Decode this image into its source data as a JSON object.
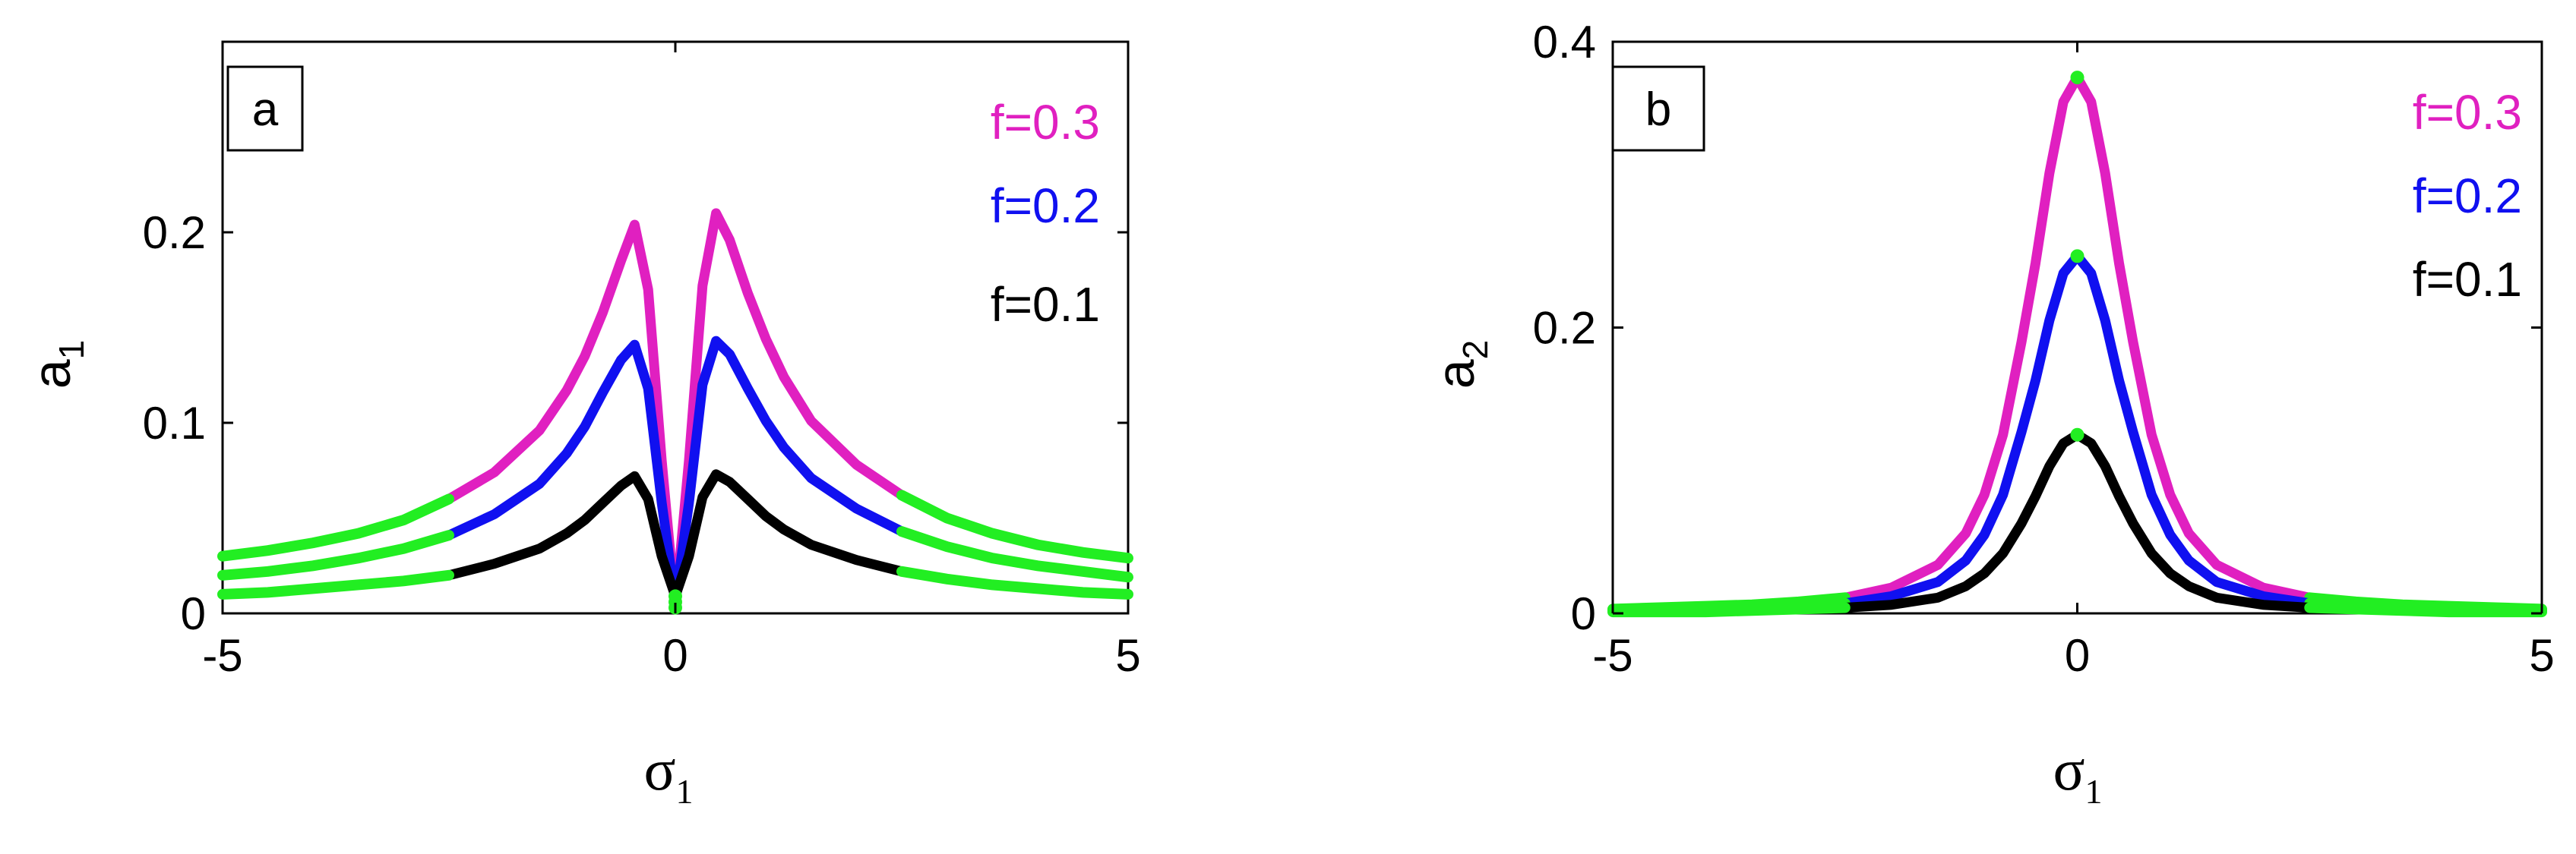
{
  "chart_data": [
    {
      "panel": "a",
      "type": "line",
      "xlabel": "σ",
      "xlabel_sub": "1",
      "ylabel": "a",
      "ylabel_sub": "1",
      "xlim": [
        -5,
        5
      ],
      "ylim": [
        0,
        0.3
      ],
      "xticks": [
        -5,
        0,
        5
      ],
      "yticks": [
        0,
        0.1,
        0.2
      ],
      "ytick_labels": [
        "0",
        "0.1",
        "0.2"
      ],
      "xtick_labels": [
        "-5",
        "0",
        "5"
      ],
      "grid": false,
      "legend_position": "top-right",
      "stable_color": "#22ee22",
      "stable_range_note_x": [
        -2.5,
        2.5
      ],
      "x": [
        -5,
        -4.5,
        -4,
        -3.5,
        -3,
        -2.5,
        -2,
        -1.5,
        -1.2,
        -1,
        -0.8,
        -0.6,
        -0.45,
        -0.3,
        -0.15,
        0,
        0.15,
        0.3,
        0.45,
        0.6,
        0.8,
        1,
        1.2,
        1.5,
        2,
        2.5,
        3,
        3.5,
        4,
        4.5,
        5
      ],
      "series": [
        {
          "name": "f=0.3",
          "color": "#e020c0",
          "values": [
            0.03,
            0.033,
            0.037,
            0.042,
            0.049,
            0.06,
            0.074,
            0.096,
            0.117,
            0.135,
            0.158,
            0.185,
            0.204,
            0.17,
            0.08,
            0.003,
            0.08,
            0.172,
            0.21,
            0.196,
            0.168,
            0.144,
            0.124,
            0.101,
            0.078,
            0.062,
            0.05,
            0.042,
            0.036,
            0.032,
            0.029
          ]
        },
        {
          "name": "f=0.2",
          "color": "#1010f0",
          "values": [
            0.02,
            0.022,
            0.025,
            0.029,
            0.034,
            0.041,
            0.052,
            0.068,
            0.084,
            0.098,
            0.116,
            0.133,
            0.141,
            0.118,
            0.058,
            0.006,
            0.058,
            0.12,
            0.143,
            0.136,
            0.118,
            0.101,
            0.087,
            0.071,
            0.055,
            0.043,
            0.035,
            0.029,
            0.025,
            0.022,
            0.019
          ]
        },
        {
          "name": "f=0.1",
          "color": "#000000",
          "values": [
            0.01,
            0.011,
            0.013,
            0.015,
            0.017,
            0.02,
            0.026,
            0.034,
            0.042,
            0.049,
            0.058,
            0.067,
            0.072,
            0.06,
            0.03,
            0.009,
            0.03,
            0.061,
            0.073,
            0.069,
            0.06,
            0.051,
            0.044,
            0.036,
            0.028,
            0.022,
            0.018,
            0.015,
            0.013,
            0.011,
            0.01
          ]
        }
      ]
    },
    {
      "panel": "b",
      "type": "line",
      "xlabel": "σ",
      "xlabel_sub": "1",
      "ylabel": "a",
      "ylabel_sub": "2",
      "xlim": [
        -5,
        5
      ],
      "ylim": [
        0,
        0.4
      ],
      "xticks": [
        -5,
        0,
        5
      ],
      "yticks": [
        0,
        0.2,
        0.4
      ],
      "ytick_labels": [
        "0",
        "0.2",
        "0.4"
      ],
      "xtick_labels": [
        "-5",
        "0",
        "5"
      ],
      "grid": false,
      "legend_position": "top-right",
      "stable_color": "#22ee22",
      "stable_range_note_x": [
        -2.5,
        2.5
      ],
      "x": [
        -5,
        -4.5,
        -4,
        -3.5,
        -3,
        -2.5,
        -2,
        -1.5,
        -1.2,
        -1,
        -0.8,
        -0.6,
        -0.45,
        -0.3,
        -0.15,
        0,
        0.15,
        0.3,
        0.45,
        0.6,
        0.8,
        1,
        1.2,
        1.5,
        2,
        2.5,
        3,
        3.5,
        4,
        4.5,
        5
      ],
      "series": [
        {
          "name": "f=0.3",
          "color": "#e020c0",
          "values": [
            0.003,
            0.004,
            0.005,
            0.006,
            0.008,
            0.011,
            0.018,
            0.034,
            0.056,
            0.083,
            0.125,
            0.19,
            0.245,
            0.308,
            0.358,
            0.375,
            0.358,
            0.308,
            0.245,
            0.19,
            0.125,
            0.083,
            0.056,
            0.034,
            0.018,
            0.011,
            0.008,
            0.006,
            0.005,
            0.004,
            0.003
          ]
        },
        {
          "name": "f=0.2",
          "color": "#1010f0",
          "values": [
            0.002,
            0.002,
            0.003,
            0.004,
            0.005,
            0.007,
            0.012,
            0.022,
            0.037,
            0.055,
            0.083,
            0.127,
            0.163,
            0.205,
            0.238,
            0.25,
            0.238,
            0.205,
            0.163,
            0.127,
            0.083,
            0.055,
            0.037,
            0.022,
            0.012,
            0.007,
            0.005,
            0.004,
            0.003,
            0.002,
            0.002
          ]
        },
        {
          "name": "f=0.1",
          "color": "#000000",
          "values": [
            0.001,
            0.001,
            0.001,
            0.002,
            0.003,
            0.004,
            0.006,
            0.011,
            0.019,
            0.028,
            0.042,
            0.063,
            0.082,
            0.103,
            0.119,
            0.125,
            0.119,
            0.103,
            0.082,
            0.063,
            0.042,
            0.028,
            0.019,
            0.011,
            0.006,
            0.004,
            0.003,
            0.002,
            0.001,
            0.001,
            0.001
          ]
        }
      ]
    }
  ]
}
